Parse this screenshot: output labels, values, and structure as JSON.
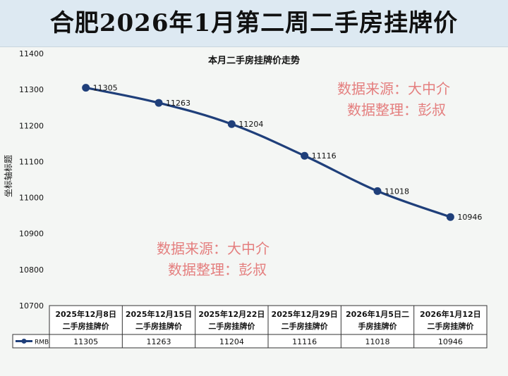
{
  "page_title": "合肥2026年1月第二周二手房挂牌价",
  "watermarks": [
    {
      "source": "数据来源：大中介",
      "editor": "数据整理：彭叔"
    },
    {
      "source": "数据来源：大中介",
      "editor": "数据整理：彭叔"
    }
  ],
  "legend_label": "RMB",
  "colors": {
    "series": "#1f3f7a",
    "watermark": "#e26a6a",
    "banner": "#dde9f2"
  },
  "chart_data": {
    "type": "line",
    "title": "本月二手房挂牌价走势",
    "xlabel": "",
    "ylabel": "坐标轴标题",
    "ylim": [
      10700,
      11400
    ],
    "yticks": [
      10700,
      10800,
      10900,
      11000,
      11100,
      11200,
      11300,
      11400
    ],
    "categories": [
      [
        "2025年12月8日",
        "二手房挂牌价"
      ],
      [
        "2025年12月15日",
        "二手房挂牌价"
      ],
      [
        "2025年12月22日",
        "二手房挂牌价"
      ],
      [
        "2025年12月29日",
        "二手房挂牌价"
      ],
      [
        "2026年1月5日二",
        "手房挂牌价"
      ],
      [
        "2026年1月12日",
        "二手房挂牌价"
      ]
    ],
    "series": [
      {
        "name": "RMB",
        "values": [
          11305,
          11263,
          11204,
          11116,
          11018,
          10946
        ]
      }
    ],
    "grid": false,
    "legend": "data-table"
  }
}
